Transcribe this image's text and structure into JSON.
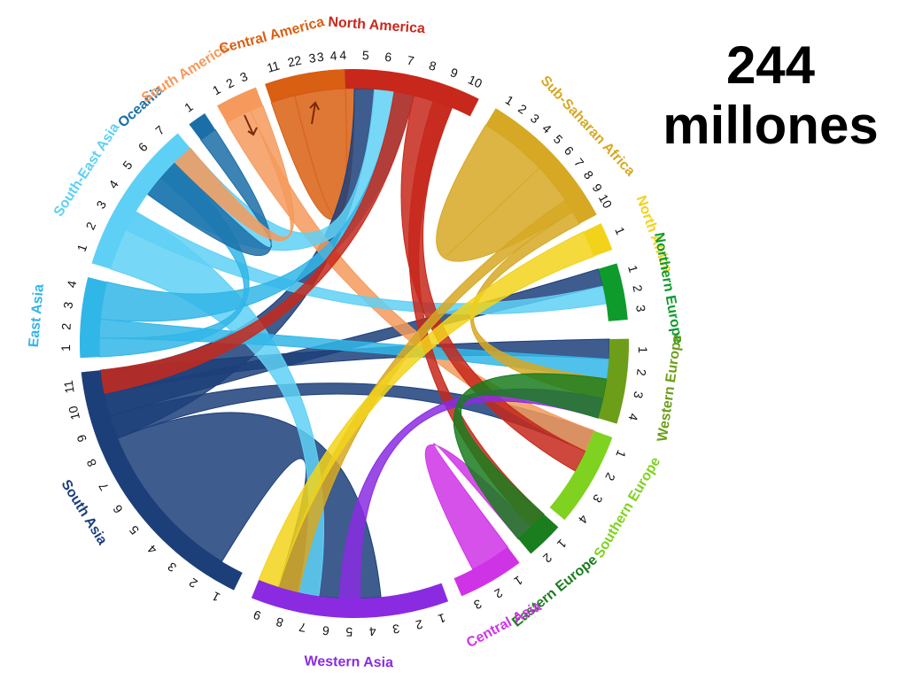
{
  "headline": {
    "number": "244",
    "unit": "millones"
  },
  "regions": [
    {
      "key": "na",
      "name": "North America",
      "color": "#c7281b",
      "ticks": [
        "1",
        "2",
        "3",
        "4",
        "5",
        "6",
        "7",
        "8",
        "9",
        "10"
      ]
    },
    {
      "key": "ssa",
      "name": "Sub-Saharan Africa",
      "color": "#d6a823",
      "ticks": [
        "1",
        "2",
        "3",
        "4",
        "5",
        "6",
        "7",
        "8",
        "9",
        "10"
      ]
    },
    {
      "key": "naf",
      "name": "North Africa",
      "color": "#f2d31a",
      "ticks": [
        "1"
      ]
    },
    {
      "key": "neu",
      "name": "Northern Europe",
      "color": "#0e9b2c",
      "ticks": [
        "1",
        "2",
        "3"
      ]
    },
    {
      "key": "weu",
      "name": "Western Europe",
      "color": "#6c9e1a",
      "ticks": [
        "1",
        "2",
        "3",
        "4"
      ]
    },
    {
      "key": "seu",
      "name": "Southern Europe",
      "color": "#7fd21f",
      "ticks": [
        "1",
        "2",
        "3",
        "4"
      ]
    },
    {
      "key": "eeu",
      "name": "Eastern Europe",
      "color": "#1a7d1e",
      "ticks": [
        "1",
        "2"
      ]
    },
    {
      "key": "cas",
      "name": "Central Asia",
      "color": "#cf33e6",
      "ticks": [
        "1",
        "2",
        "3"
      ]
    },
    {
      "key": "was",
      "name": "Western Asia",
      "color": "#8a2be2",
      "ticks": [
        "1",
        "2",
        "3",
        "4",
        "5",
        "6",
        "7",
        "8",
        "9"
      ]
    },
    {
      "key": "sas",
      "name": "South Asia",
      "color": "#1c3f7a",
      "ticks": [
        "1",
        "2",
        "3",
        "4",
        "5",
        "6",
        "7",
        "8",
        "9",
        "10",
        "11"
      ]
    },
    {
      "key": "eas",
      "name": "East Asia",
      "color": "#31b6e8",
      "ticks": [
        "1",
        "2",
        "3",
        "4"
      ]
    },
    {
      "key": "sea",
      "name": "South-East Asia",
      "color": "#5fd0f5",
      "ticks": [
        "1",
        "2",
        "3",
        "4",
        "5",
        "6",
        "7"
      ]
    },
    {
      "key": "oce",
      "name": "Oceania",
      "color": "#1b6fa8",
      "ticks": [
        "1"
      ]
    },
    {
      "key": "sam",
      "name": "South America",
      "color": "#f59a5c",
      "ticks": [
        "1",
        "2",
        "3"
      ]
    },
    {
      "key": "cam",
      "name": "Central America",
      "color": "#d95f12",
      "ticks": [
        "1",
        "2",
        "3",
        "4"
      ]
    }
  ],
  "flows": [
    {
      "from": "na",
      "from_at": [
        1,
        4
      ],
      "to": "cam",
      "to_at": [
        0,
        4
      ],
      "color": "#d95f12"
    },
    {
      "from": "ssa",
      "from_at": [
        0,
        5
      ],
      "to": "ssa",
      "to_at": [
        5,
        9
      ],
      "color": "#d6a823"
    },
    {
      "from": "sas",
      "from_at": [
        1,
        8
      ],
      "to": "was",
      "to_at": [
        3,
        8
      ],
      "color": "#1c3f7a"
    },
    {
      "from": "sas",
      "from_at": [
        8,
        11
      ],
      "to": "na",
      "to_at": [
        4,
        5
      ],
      "color": "#1c3f7a"
    },
    {
      "from": "sas",
      "from_at": [
        9,
        10
      ],
      "to": "neu",
      "to_at": [
        0,
        1
      ],
      "color": "#1c3f7a"
    },
    {
      "from": "sas",
      "from_at": [
        10,
        11
      ],
      "to": "weu",
      "to_at": [
        0,
        1
      ],
      "color": "#1c3f7a"
    },
    {
      "from": "sas",
      "from_at": [
        8,
        9
      ],
      "to": "seu",
      "to_at": [
        0,
        1
      ],
      "color": "#1c3f7a"
    },
    {
      "from": "sam",
      "from_at": [
        0,
        2
      ],
      "to": "seu",
      "to_at": [
        0,
        1
      ],
      "color": "#f59a5c"
    },
    {
      "from": "sea",
      "from_at": [
        4,
        7
      ],
      "to": "na",
      "to_at": [
        5,
        7
      ],
      "color": "#5fd0f5"
    },
    {
      "from": "sea",
      "from_at": [
        0,
        3
      ],
      "to": "was",
      "to_at": [
        6,
        7
      ],
      "color": "#5fd0f5"
    },
    {
      "from": "sea",
      "from_at": [
        2,
        3
      ],
      "to": "neu",
      "to_at": [
        1,
        2
      ],
      "color": "#5fd0f5"
    },
    {
      "from": "eas",
      "from_at": [
        2,
        4
      ],
      "to": "na",
      "to_at": [
        6,
        7
      ],
      "color": "#31b6e8"
    },
    {
      "from": "eas",
      "from_at": [
        1,
        2
      ],
      "to": "weu",
      "to_at": [
        1,
        2
      ],
      "color": "#31b6e8"
    },
    {
      "from": "eas",
      "from_at": [
        0,
        1
      ],
      "to": "sea",
      "to_at": [
        5,
        6
      ],
      "color": "#31b6e8"
    },
    {
      "from": "na",
      "from_at": [
        7,
        9
      ],
      "to": "seu",
      "to_at": [
        1,
        2
      ],
      "color": "#c7281b"
    },
    {
      "from": "na",
      "from_at": [
        8,
        9
      ],
      "to": "eeu",
      "to_at": [
        0,
        1
      ],
      "color": "#c7281b"
    },
    {
      "from": "na",
      "from_at": [
        6,
        7
      ],
      "to": "sas",
      "to_at": [
        10,
        11
      ],
      "color": "#c7281b"
    },
    {
      "from": "ssa",
      "from_at": [
        9,
        10
      ],
      "to": "weu",
      "to_at": [
        2,
        3
      ],
      "color": "#d6a823"
    },
    {
      "from": "ssa",
      "from_at": [
        8,
        9
      ],
      "to": "was",
      "to_at": [
        7,
        8
      ],
      "color": "#d6a823"
    },
    {
      "from": "naf",
      "from_at": [
        0,
        1
      ],
      "to": "was",
      "to_at": [
        8,
        9
      ],
      "color": "#f2d31a"
    },
    {
      "from": "was",
      "from_at": [
        4,
        5
      ],
      "to": "weu",
      "to_at": [
        3,
        4
      ],
      "color": "#8a2be2"
    },
    {
      "from": "cas",
      "from_at": [
        0,
        2
      ],
      "to": "eeu",
      "to_at": [
        1,
        2
      ],
      "color": "#cf33e6"
    },
    {
      "from": "eeu",
      "from_at": [
        0,
        2
      ],
      "to": "weu",
      "to_at": [
        2,
        4
      ],
      "color": "#1a7d1e"
    },
    {
      "from": "oce",
      "from_at": [
        0,
        1
      ],
      "to": "sea",
      "to_at": [
        4,
        6
      ],
      "color": "#1b6fa8"
    },
    {
      "from": "sam",
      "from_at": [
        2,
        3
      ],
      "to": "sea",
      "to_at": [
        6,
        7
      ],
      "color": "#f59a5c"
    }
  ]
}
